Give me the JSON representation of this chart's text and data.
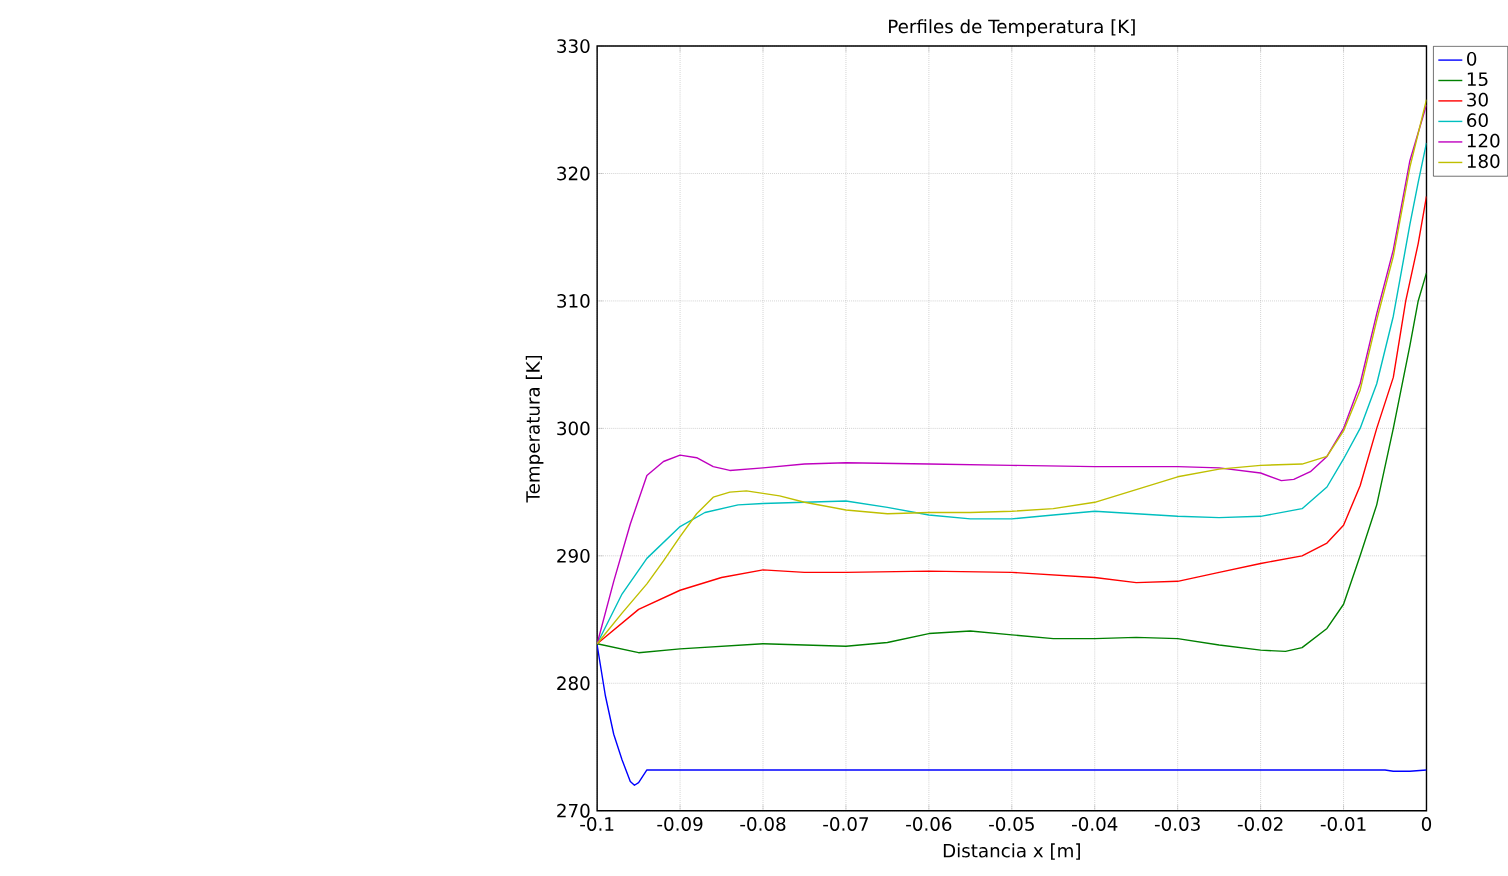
{
  "chart_data": {
    "type": "line",
    "title": "Perfiles de Temperatura [K]",
    "xlabel": "Distancia x [m]",
    "ylabel": "Temperatura [K]",
    "xlim": [
      -0.1,
      0
    ],
    "ylim": [
      270,
      330
    ],
    "xticks": [
      -0.1,
      -0.09,
      -0.08,
      -0.07,
      -0.06,
      -0.05,
      -0.04,
      -0.03,
      -0.02,
      -0.01,
      0
    ],
    "yticks": [
      270,
      280,
      290,
      300,
      310,
      320,
      330
    ],
    "grid": true,
    "legend": "top right",
    "marker": "none",
    "line_style": "solid",
    "series": [
      {
        "name": "0",
        "color": "#0000ff",
        "x": [
          -0.1,
          -0.099,
          -0.098,
          -0.097,
          -0.096,
          -0.0955,
          -0.095,
          -0.094,
          -0.05,
          -0.005,
          -0.004,
          -0.002,
          0
        ],
        "values": [
          283,
          279,
          276,
          274,
          272.3,
          272,
          272.2,
          273.2,
          273.2,
          273.2,
          273.1,
          273.1,
          273.2
        ]
      },
      {
        "name": "15",
        "color": "#008000",
        "x": [
          -0.1,
          -0.095,
          -0.09,
          -0.08,
          -0.07,
          -0.065,
          -0.06,
          -0.055,
          -0.05,
          -0.045,
          -0.04,
          -0.035,
          -0.03,
          -0.025,
          -0.02,
          -0.017,
          -0.015,
          -0.012,
          -0.01,
          -0.008,
          -0.006,
          -0.004,
          -0.002,
          -0.001,
          0
        ],
        "values": [
          283.1,
          282.4,
          282.7,
          283.1,
          282.9,
          283.2,
          283.9,
          284.1,
          283.8,
          283.5,
          283.5,
          283.6,
          283.5,
          283,
          282.6,
          282.5,
          282.8,
          284.3,
          286.2,
          290,
          294,
          300,
          306.5,
          310,
          312.2
        ]
      },
      {
        "name": "30",
        "color": "#ff0000",
        "x": [
          -0.1,
          -0.095,
          -0.09,
          -0.085,
          -0.08,
          -0.075,
          -0.07,
          -0.06,
          -0.05,
          -0.04,
          -0.035,
          -0.03,
          -0.025,
          -0.02,
          -0.015,
          -0.012,
          -0.01,
          -0.008,
          -0.006,
          -0.004,
          -0.0025,
          -0.001,
          0
        ],
        "values": [
          283.1,
          285.8,
          287.3,
          288.3,
          288.9,
          288.7,
          288.7,
          288.8,
          288.7,
          288.3,
          287.9,
          288,
          288.7,
          289.4,
          290,
          291,
          292.4,
          295.5,
          300,
          304,
          310,
          314.5,
          318.2
        ]
      },
      {
        "name": "60",
        "color": "#00bfbf",
        "x": [
          -0.1,
          -0.097,
          -0.094,
          -0.09,
          -0.087,
          -0.083,
          -0.08,
          -0.075,
          -0.07,
          -0.065,
          -0.06,
          -0.055,
          -0.05,
          -0.045,
          -0.04,
          -0.035,
          -0.03,
          -0.025,
          -0.02,
          -0.015,
          -0.012,
          -0.01,
          -0.008,
          -0.006,
          -0.004,
          -0.002,
          -0.001,
          0
        ],
        "values": [
          283.1,
          287,
          289.8,
          292.3,
          293.4,
          294,
          294.1,
          294.2,
          294.3,
          293.8,
          293.2,
          292.9,
          292.9,
          293.2,
          293.5,
          293.3,
          293.1,
          293,
          293.1,
          293.7,
          295.4,
          297.6,
          300,
          303.5,
          308.8,
          316,
          319.3,
          322.4
        ]
      },
      {
        "name": "120",
        "color": "#bf00bf",
        "x": [
          -0.1,
          -0.098,
          -0.096,
          -0.094,
          -0.092,
          -0.09,
          -0.088,
          -0.086,
          -0.084,
          -0.08,
          -0.075,
          -0.07,
          -0.06,
          -0.05,
          -0.04,
          -0.03,
          -0.025,
          -0.02,
          -0.0175,
          -0.016,
          -0.014,
          -0.012,
          -0.01,
          -0.008,
          -0.006,
          -0.004,
          -0.002,
          0
        ],
        "values": [
          283.1,
          288,
          292.5,
          296.3,
          297.4,
          297.9,
          297.7,
          297,
          296.7,
          296.9,
          297.2,
          297.3,
          297.2,
          297.1,
          297,
          297,
          296.9,
          296.5,
          295.9,
          296,
          296.6,
          297.8,
          300,
          303.5,
          309,
          314,
          321,
          325.4
        ]
      },
      {
        "name": "180",
        "color": "#bfbf00",
        "x": [
          -0.1,
          -0.097,
          -0.094,
          -0.092,
          -0.09,
          -0.088,
          -0.086,
          -0.084,
          -0.082,
          -0.08,
          -0.078,
          -0.075,
          -0.07,
          -0.065,
          -0.06,
          -0.055,
          -0.05,
          -0.045,
          -0.04,
          -0.035,
          -0.03,
          -0.025,
          -0.02,
          -0.015,
          -0.012,
          -0.01,
          -0.008,
          -0.006,
          -0.004,
          -0.002,
          0
        ],
        "values": [
          283.1,
          285.5,
          287.8,
          289.6,
          291.5,
          293.3,
          294.6,
          295,
          295.1,
          294.9,
          294.7,
          294.2,
          293.6,
          293.3,
          293.4,
          293.4,
          293.5,
          293.7,
          294.2,
          295.2,
          296.2,
          296.8,
          297.1,
          297.2,
          297.8,
          299.8,
          303,
          308.5,
          313.5,
          320.5,
          325.8
        ]
      }
    ]
  }
}
